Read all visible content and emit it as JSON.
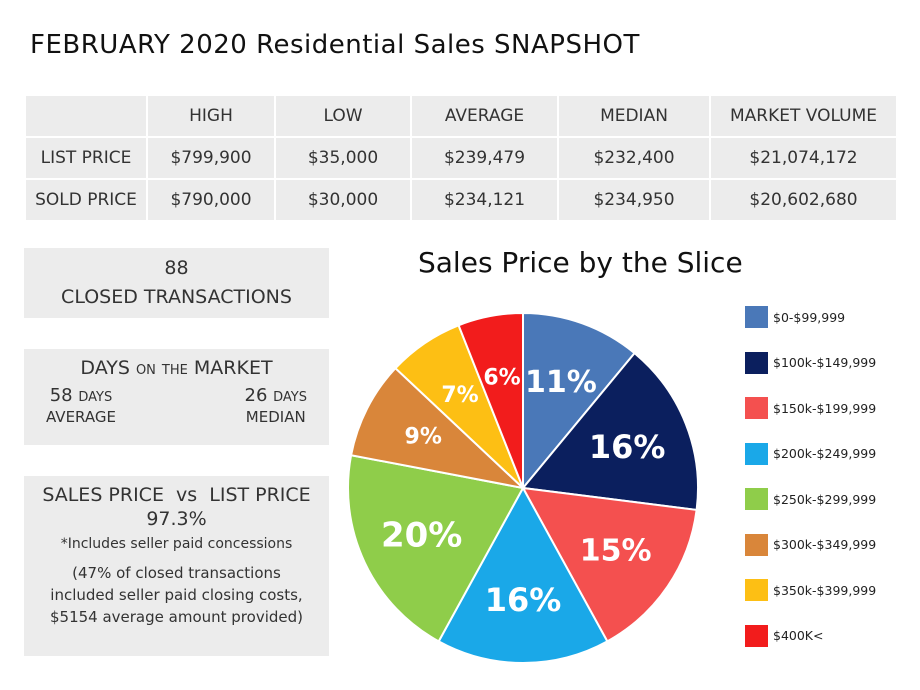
{
  "title": "FEBRUARY 2020 Residential Sales SNAPSHOT",
  "stats_table": {
    "headers": [
      "",
      "HIGH",
      "LOW",
      "AVERAGE",
      "MEDIAN",
      "MARKET VOLUME"
    ],
    "rows": [
      [
        "LIST PRICE",
        "$799,900",
        "$35,000",
        "$239,479",
        "$232,400",
        "$21,074,172"
      ],
      [
        "SOLD PRICE",
        "$790,000",
        "$30,000",
        "$234,121",
        "$234,950",
        "$20,602,680"
      ]
    ]
  },
  "closed": {
    "count": "88",
    "label": "CLOSED TRANSACTIONS"
  },
  "dom": {
    "heading_a": "DAYS ",
    "heading_b": "on the",
    "heading_c": " MARKET",
    "avg_value": "58 ",
    "avg_unit": "days",
    "avg_label": "AVERAGE",
    "med_value": "26 ",
    "med_unit": "days",
    "med_label": "MEDIAN"
  },
  "sales_vs_list": {
    "heading": "SALES PRICE  vs  LIST PRICE",
    "percent": "97.3%",
    "note": "*Includes seller paid concessions",
    "line1": "(47% of closed transactions",
    "line2": "included seller paid closing costs,",
    "line3": "$5154 average amount provided)"
  },
  "chart_data": {
    "type": "pie",
    "title": "Sales Price by the Slice",
    "categories": [
      "$0-$99,999",
      "$100k-$149,999",
      "$150k-$199,999",
      "$200k-$249,999",
      "$250k-$299,999",
      "$300k-$349,999",
      "$350k-$399,999",
      "$400K<"
    ],
    "values": [
      11,
      16,
      15,
      16,
      20,
      9,
      7,
      6
    ],
    "labels": [
      "11%",
      "16%",
      "15%",
      "16%",
      "20%",
      "9%",
      "7%",
      "6%"
    ],
    "colors": [
      "#4a78b8",
      "#0b1f5e",
      "#f4504f",
      "#1aa8e8",
      "#8fcd4a",
      "#d9863a",
      "#fdbf14",
      "#f21c1c"
    ],
    "legend_position": "right"
  }
}
